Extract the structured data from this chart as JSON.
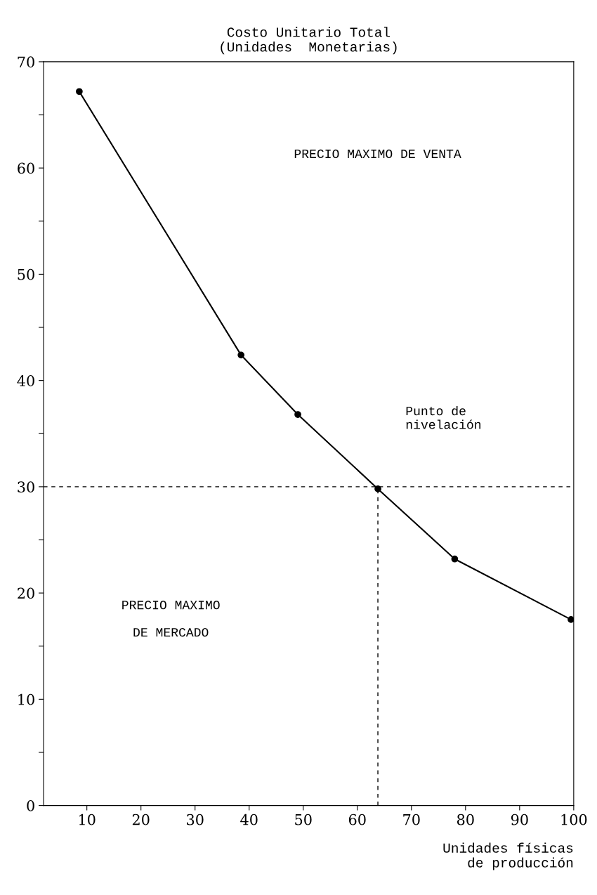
{
  "chart_data": {
    "type": "line",
    "ylabel": "Costo Unitario Total\n(Unidades  Monetarias)",
    "xlabel": "Unidades físicas\nde producción",
    "x": [
      8.6,
      38.5,
      49,
      63.8,
      78,
      99.5
    ],
    "series": [
      {
        "color": "#000000",
        "values": [
          67.2,
          42.4,
          36.8,
          29.8,
          23.2,
          17.5
        ]
      }
    ],
    "marker": "circle",
    "xlim": [
      2,
      100
    ],
    "ylim": [
      0,
      70
    ],
    "xticks": [
      10,
      20,
      30,
      40,
      50,
      60,
      70,
      80,
      90,
      100
    ],
    "yticks": [
      0,
      {
        "value": 5,
        "label": null
      },
      10,
      {
        "value": 15,
        "label": null
      },
      20,
      {
        "value": 25,
        "label": null
      },
      30,
      {
        "value": 35,
        "label": null
      },
      40,
      {
        "value": 45,
        "label": null
      },
      50,
      {
        "value": 55,
        "label": null
      },
      60,
      {
        "value": 65,
        "label": null
      },
      70
    ],
    "ref_lines": [
      {
        "axis": "y",
        "value": 30,
        "line_style": "dashed"
      },
      {
        "axis": "x",
        "value": 63.8,
        "line_style": "dashed"
      }
    ],
    "annotations": [
      "PRECIO MAXIMO DE VENTA",
      "PRECIO MAXIMO\n\nDE MERCADO",
      "Punto de\n  nivelación"
    ],
    "grid": false,
    "legend": false
  }
}
